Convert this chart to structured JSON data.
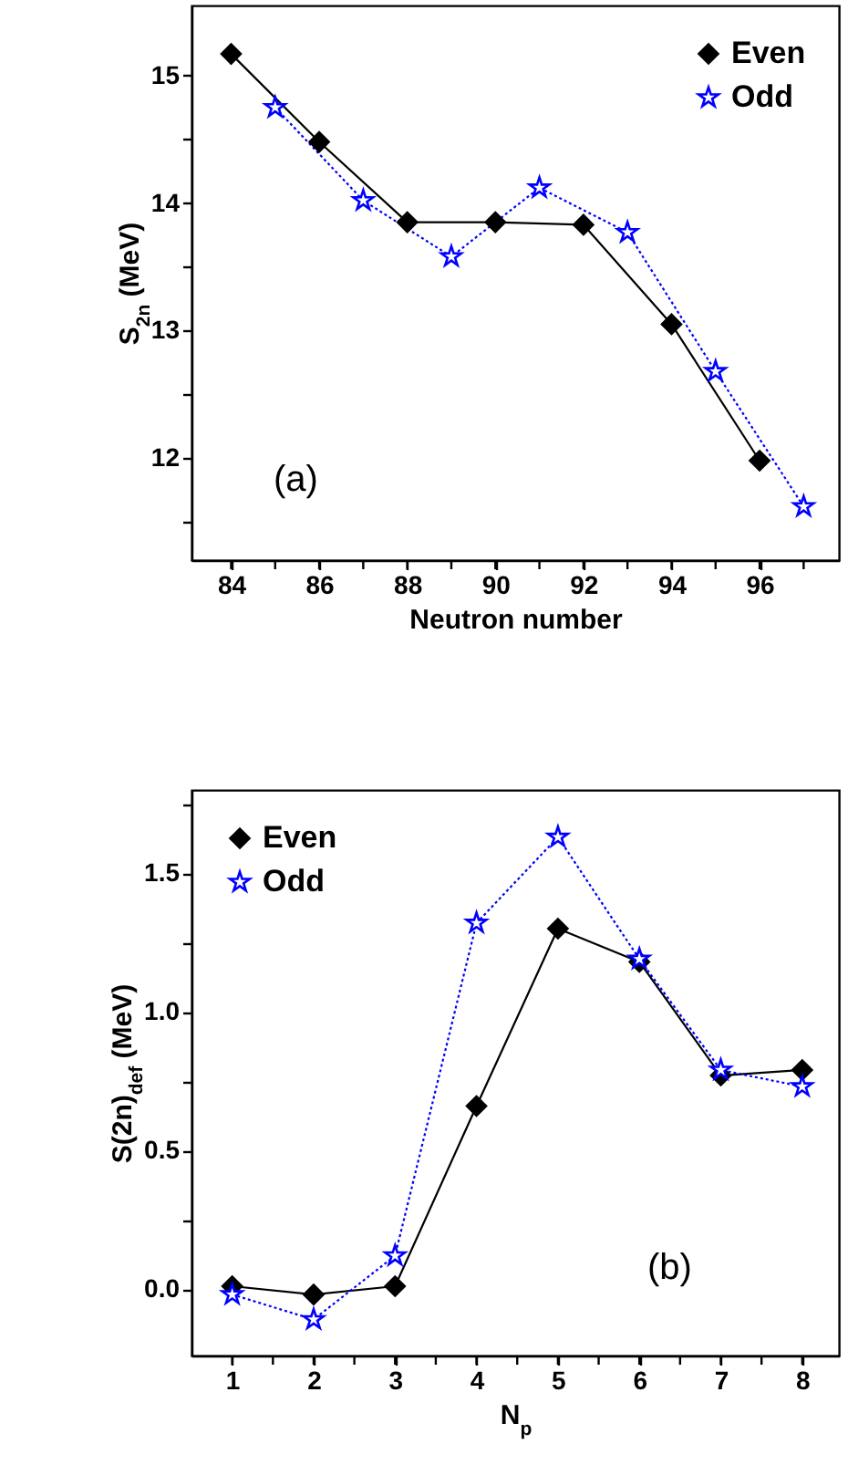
{
  "chart_data": [
    {
      "type": "line",
      "xlabel": "Neutron number",
      "ylabel": "S$_{2n}$ (MeV)",
      "xlim": [
        83.1,
        97.8
      ],
      "ylim": [
        11.2,
        15.55
      ],
      "xticks": [
        84,
        {
          "value": 85,
          "label": null
        },
        86,
        {
          "value": 87,
          "label": null
        },
        88,
        {
          "value": 89,
          "label": null
        },
        90,
        {
          "value": 91,
          "label": null
        },
        92,
        {
          "value": 93,
          "label": null
        },
        94,
        {
          "value": 95,
          "label": null
        },
        96,
        {
          "value": 97,
          "label": null
        }
      ],
      "yticks": [
        {
          "value": 11.5,
          "label": null
        },
        12,
        {
          "value": 12.5,
          "label": null
        },
        13,
        {
          "value": 13.5,
          "label": null
        },
        14,
        {
          "value": 14.5,
          "label": null
        },
        15
      ],
      "legend": "top right",
      "annotations": [
        "(a)"
      ],
      "series": [
        {
          "name": "Even",
          "color": "#000000",
          "marker": "diamond",
          "line_style": "solid",
          "x": [
            84,
            86,
            88,
            90,
            92,
            94,
            96
          ],
          "values": [
            15.17,
            14.48,
            13.85,
            13.85,
            13.83,
            13.05,
            11.98
          ]
        },
        {
          "name": "Odd",
          "color": "#0000ff",
          "marker": "star",
          "line_style": "dotted",
          "x": [
            85,
            87,
            89,
            91,
            93,
            95,
            97
          ],
          "values": [
            14.75,
            14.02,
            13.58,
            14.12,
            13.77,
            12.68,
            11.62
          ]
        }
      ]
    },
    {
      "type": "line",
      "xlabel": "N$_{p}$",
      "ylabel": "S(2n)$_{def}$ (MeV)",
      "xlim": [
        0.5,
        8.45
      ],
      "ylim": [
        -0.24,
        1.8
      ],
      "xticks": [
        1,
        {
          "value": 1.5,
          "label": null
        },
        2,
        {
          "value": 2.5,
          "label": null
        },
        3,
        {
          "value": 3.5,
          "label": null
        },
        4,
        {
          "value": 4.5,
          "label": null
        },
        5,
        {
          "value": 5.5,
          "label": null
        },
        6,
        {
          "value": 6.5,
          "label": null
        },
        7,
        {
          "value": 7.5,
          "label": null
        },
        8
      ],
      "yticks": [
        {
          "value": 0,
          "label": "0.0"
        },
        {
          "value": 0.25,
          "label": null
        },
        0.5,
        {
          "value": 0.75,
          "label": null
        },
        {
          "value": 1,
          "label": "1.0"
        },
        {
          "value": 1.25,
          "label": null
        },
        1.5,
        {
          "value": 1.75,
          "label": null
        }
      ],
      "legend": "top left",
      "annotations": [
        "(b)"
      ],
      "series": [
        {
          "name": "Even",
          "color": "#000000",
          "marker": "diamond",
          "line_style": "solid",
          "x": [
            1,
            2,
            3,
            4,
            5,
            6,
            7,
            8
          ],
          "values": [
            0.01,
            -0.02,
            0.01,
            0.66,
            1.3,
            1.18,
            0.77,
            0.79
          ]
        },
        {
          "name": "Odd",
          "color": "#0000ff",
          "marker": "star",
          "line_style": "dotted",
          "x": [
            1,
            2,
            3,
            4,
            5,
            6,
            7,
            8
          ],
          "values": [
            -0.02,
            -0.11,
            0.12,
            1.32,
            1.63,
            1.19,
            0.79,
            0.73
          ]
        }
      ]
    }
  ]
}
